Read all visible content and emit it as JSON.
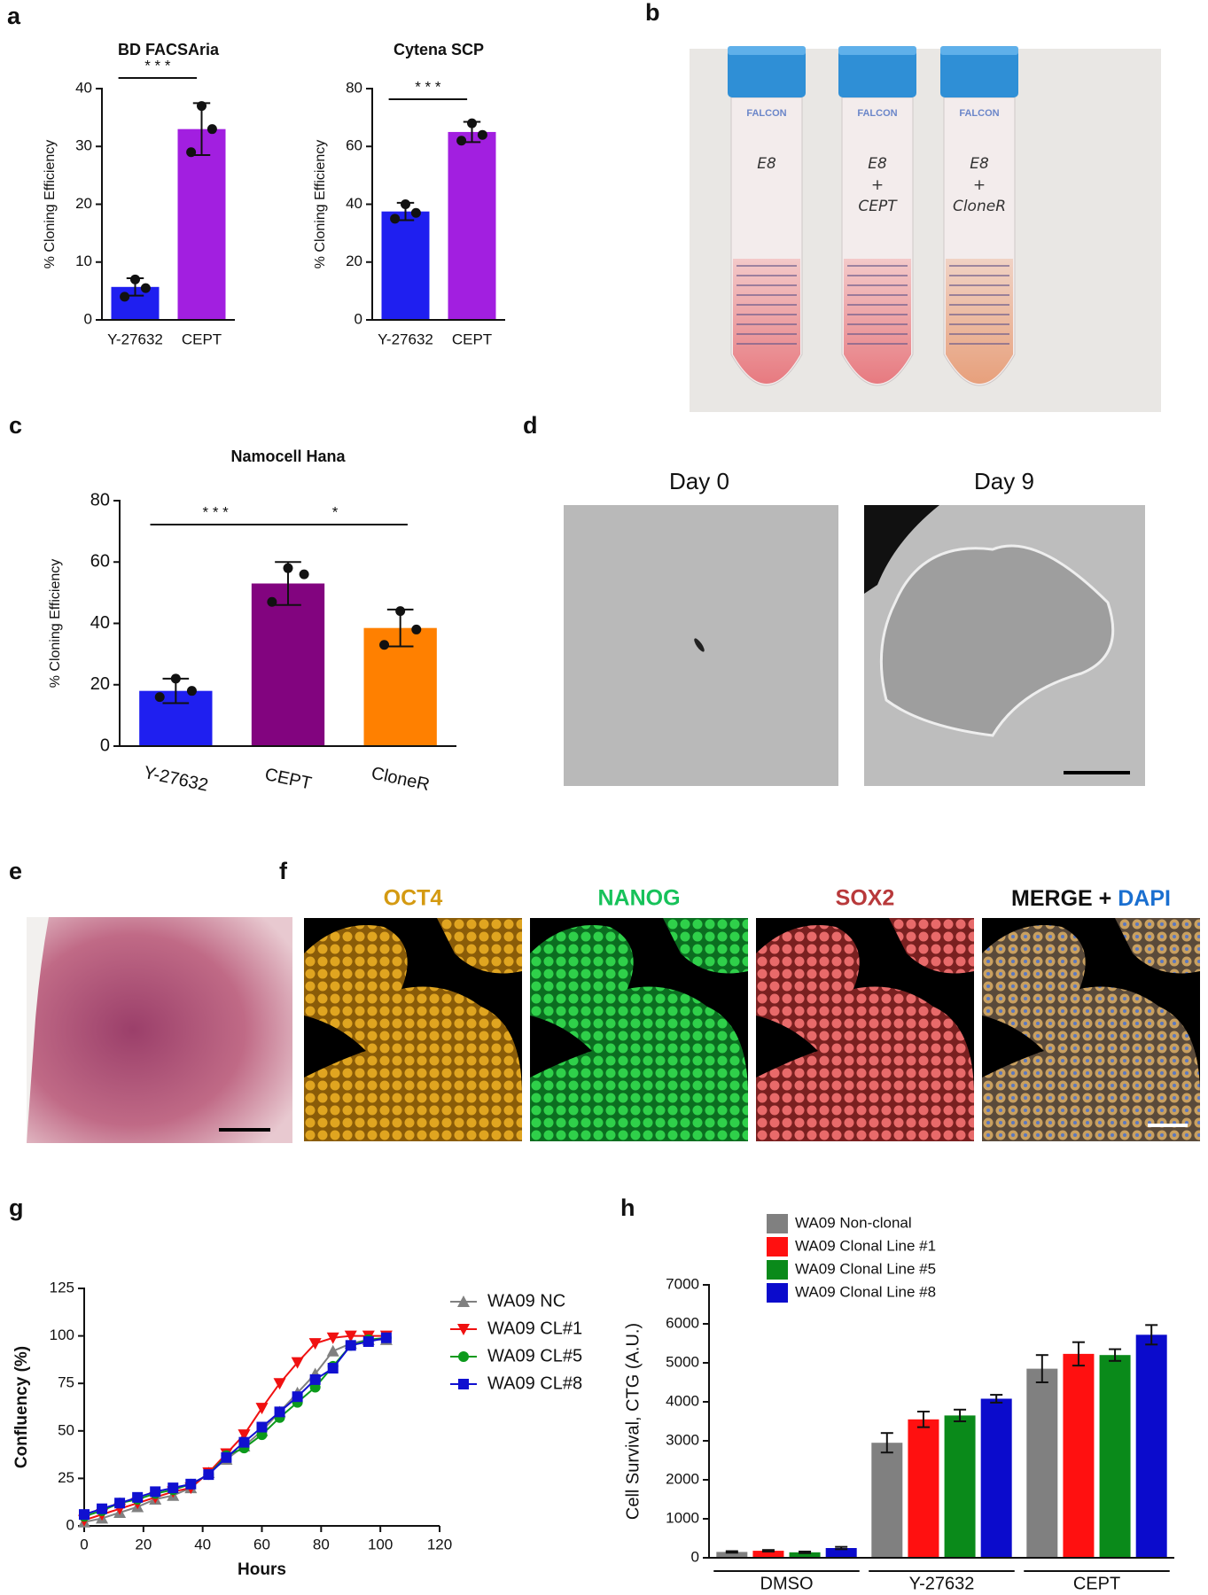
{
  "panel_labels": [
    "a",
    "b",
    "c",
    "d",
    "e",
    "f",
    "g",
    "h"
  ],
  "tubes": [
    {
      "brand": "FALCON",
      "label": [
        "E8"
      ]
    },
    {
      "brand": "FALCON",
      "label": [
        "E8",
        "+",
        "CEPT"
      ]
    },
    {
      "brand": "FALCON",
      "label": [
        "E8",
        "+",
        "CloneR"
      ]
    }
  ],
  "image_titles": {
    "d": [
      "Day 0",
      "Day 9"
    ],
    "f": [
      "OCT4",
      "NANOG",
      "SOX2",
      "MERGE +",
      "DAPI"
    ]
  },
  "chart_data": [
    {
      "type": "bar",
      "title": "BD FACSAria",
      "ylabel": "% Cloning Efficiency",
      "categories": [
        "Y-27632",
        "CEPT"
      ],
      "values": [
        5.7,
        33
      ],
      "errors": [
        1.5,
        4.5
      ],
      "points": [
        [
          4,
          7,
          5.5
        ],
        [
          29,
          37,
          33
        ]
      ],
      "colors": [
        "#1f1ff0",
        "#a21fe0"
      ],
      "ylim": [
        0,
        40
      ],
      "yticks": [
        0,
        10,
        20,
        30,
        40
      ],
      "annotations": [
        {
          "text": "* * *",
          "between": [
            "Y-27632",
            "CEPT"
          ]
        }
      ]
    },
    {
      "type": "bar",
      "title": "Cytena SCP",
      "ylabel": "% Cloning Efficiency",
      "categories": [
        "Y-27632",
        "CEPT"
      ],
      "values": [
        37.5,
        65
      ],
      "errors": [
        3,
        3.5
      ],
      "points": [
        [
          35,
          40,
          37
        ],
        [
          62,
          68,
          64
        ]
      ],
      "colors": [
        "#1f1ff0",
        "#a21fe0"
      ],
      "ylim": [
        0,
        80
      ],
      "yticks": [
        0,
        20,
        40,
        60,
        80
      ],
      "annotations": [
        {
          "text": "* * *",
          "between": [
            "Y-27632",
            "CEPT"
          ]
        }
      ]
    },
    {
      "type": "bar",
      "title": "Namocell Hana",
      "ylabel": "% Cloning Efficiency",
      "categories": [
        "Y-27632",
        "CEPT",
        "CloneR"
      ],
      "values": [
        18,
        53,
        38.5
      ],
      "errors": [
        4,
        7,
        6
      ],
      "points": [
        [
          16,
          22,
          18
        ],
        [
          47,
          58,
          56
        ],
        [
          33,
          44,
          38
        ]
      ],
      "colors": [
        "#1f1ff0",
        "#82047f",
        "#ff8000"
      ],
      "ylim": [
        0,
        80
      ],
      "yticks": [
        0,
        20,
        40,
        60,
        80
      ],
      "annotations": [
        {
          "text": "* * *",
          "between": [
            "Y-27632",
            "CEPT"
          ]
        },
        {
          "text": "*",
          "between": [
            "CEPT",
            "CloneR"
          ]
        }
      ]
    },
    {
      "type": "line",
      "xlabel": "Hours",
      "ylabel": "Confluency (%)",
      "x": [
        0,
        6,
        12,
        18,
        24,
        30,
        36,
        42,
        48,
        54,
        60,
        66,
        72,
        78,
        84,
        90,
        96,
        102
      ],
      "xlim": [
        0,
        120
      ],
      "xticks": [
        0,
        20,
        40,
        60,
        80,
        100,
        120
      ],
      "ylim": [
        0,
        125
      ],
      "yticks": [
        0,
        25,
        50,
        75,
        100,
        125
      ],
      "legend": "right",
      "series": [
        {
          "name": "WA09 NC",
          "color": "#808080",
          "marker": "triangle-up",
          "values": [
            2,
            4,
            7,
            10,
            14,
            16,
            20,
            28,
            35,
            42,
            50,
            60,
            70,
            80,
            92,
            96,
            98,
            98
          ]
        },
        {
          "name": "WA09 CL#1",
          "color": "#f01010",
          "marker": "triangle-down",
          "values": [
            3,
            6,
            9,
            12,
            15,
            18,
            20,
            28,
            38,
            48,
            62,
            75,
            86,
            96,
            99,
            100,
            100,
            100
          ]
        },
        {
          "name": "WA09 CL#5",
          "color": "#0c9a1c",
          "marker": "circle",
          "values": [
            5,
            8,
            12,
            14,
            17,
            19,
            22,
            27,
            37,
            41,
            48,
            57,
            65,
            73,
            84,
            95,
            98,
            99
          ]
        },
        {
          "name": "WA09 CL#8",
          "color": "#1010d0",
          "marker": "square",
          "values": [
            6,
            9,
            12,
            15,
            18,
            20,
            22,
            27,
            36,
            44,
            52,
            60,
            68,
            77,
            83,
            95,
            97,
            99
          ]
        }
      ]
    },
    {
      "type": "grouped-bar",
      "ylabel": "Cell Survival, CTG (A.U.)",
      "categories": [
        "DMSO",
        "Y-27632",
        "CEPT"
      ],
      "ylim": [
        0,
        7000
      ],
      "yticks": [
        0,
        1000,
        2000,
        3000,
        4000,
        5000,
        6000,
        7000
      ],
      "legend": "top-left",
      "series": [
        {
          "name": "WA09 Non-clonal",
          "color": "#808080",
          "values": [
            150,
            2950,
            4850
          ],
          "errors": [
            20,
            250,
            350
          ]
        },
        {
          "name": "WA09 Clonal Line #1",
          "color": "#ff1010",
          "values": [
            180,
            3550,
            5230
          ],
          "errors": [
            20,
            200,
            300
          ]
        },
        {
          "name": "WA09 Clonal Line #5",
          "color": "#0a8a1a",
          "values": [
            140,
            3650,
            5200
          ],
          "errors": [
            20,
            150,
            150
          ]
        },
        {
          "name": "WA09 Clonal Line #8",
          "color": "#0b0bcc",
          "values": [
            250,
            4080,
            5720
          ],
          "errors": [
            30,
            100,
            250
          ]
        }
      ]
    }
  ]
}
